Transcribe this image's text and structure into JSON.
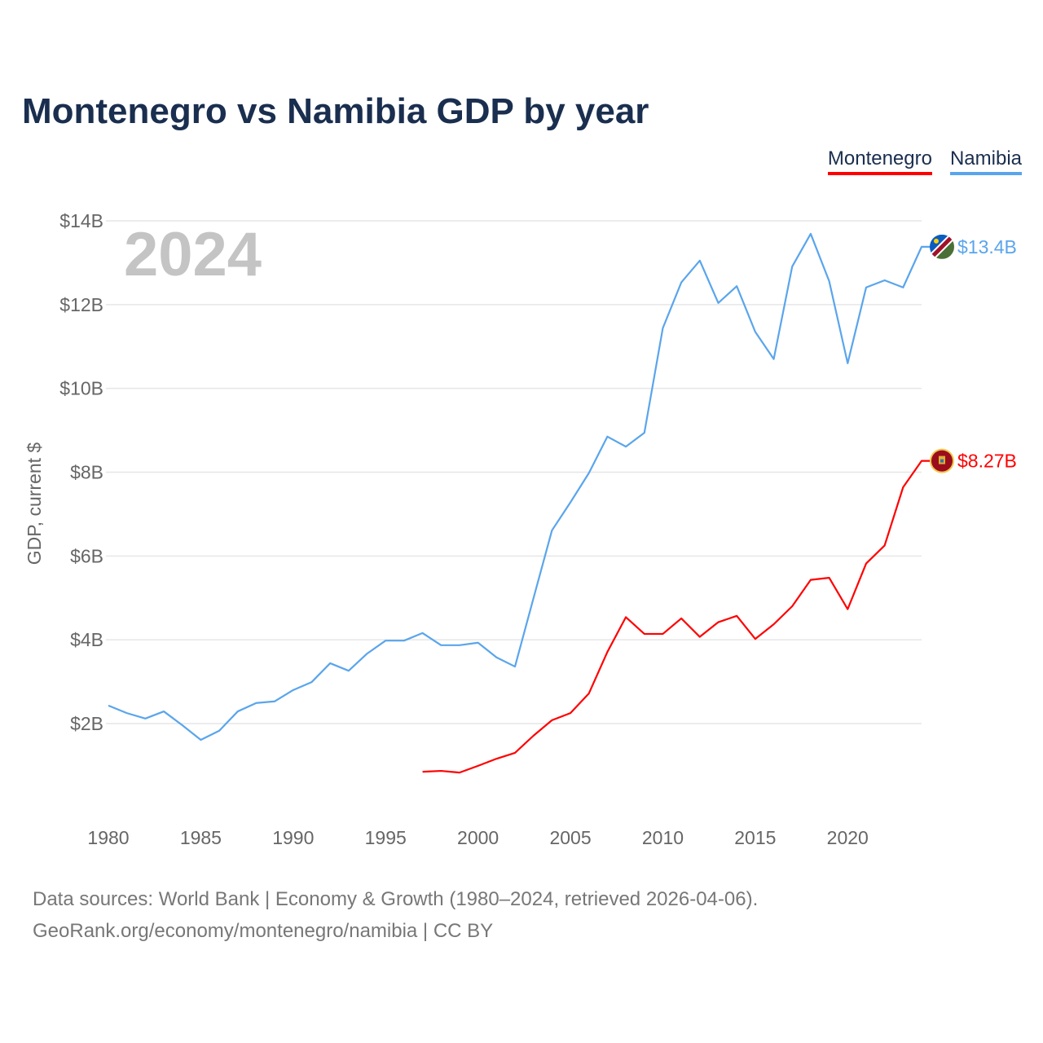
{
  "chart_data": {
    "type": "line",
    "title": "Montenegro vs Namibia GDP by year",
    "ylabel": "GDP, current $",
    "xlabel": "",
    "ylim": [
      0,
      14
    ],
    "xlim": [
      1980,
      2024
    ],
    "yticks": [
      {
        "v": 2,
        "label": "$2B"
      },
      {
        "v": 4,
        "label": "$4B"
      },
      {
        "v": 6,
        "label": "$6B"
      },
      {
        "v": 8,
        "label": "$8B"
      },
      {
        "v": 10,
        "label": "$10B"
      },
      {
        "v": 12,
        "label": "$12B"
      },
      {
        "v": 14,
        "label": "$14B"
      }
    ],
    "xticks": [
      1980,
      1985,
      1990,
      1995,
      2000,
      2005,
      2010,
      2015,
      2020
    ],
    "grid": true,
    "legend_position": "top-right",
    "year_overlay": "2024",
    "series": [
      {
        "name": "Montenegro",
        "color": "#ff0000",
        "end_label": "$8.27B",
        "flag": "montenegro-flag",
        "start_year": 1997,
        "values": [
          0.85,
          0.87,
          0.83,
          0.99,
          1.16,
          1.3,
          1.71,
          2.08,
          2.25,
          2.72,
          3.71,
          4.54,
          4.14,
          4.14,
          4.51,
          4.07,
          4.42,
          4.57,
          4.02,
          4.37,
          4.8,
          5.43,
          5.48,
          4.73,
          5.82,
          6.25,
          7.64,
          8.27
        ]
      },
      {
        "name": "Namibia",
        "color": "#5aa5ec",
        "end_label": "$13.4B",
        "flag": "namibia-flag",
        "start_year": 1980,
        "values": [
          2.43,
          2.25,
          2.12,
          2.29,
          1.96,
          1.61,
          1.83,
          2.29,
          2.49,
          2.53,
          2.8,
          2.99,
          3.44,
          3.26,
          3.67,
          3.98,
          3.98,
          4.16,
          3.87,
          3.87,
          3.93,
          3.58,
          3.36,
          4.99,
          6.61,
          7.28,
          7.98,
          8.85,
          8.61,
          8.94,
          11.44,
          12.53,
          13.05,
          12.04,
          12.44,
          11.35,
          10.7,
          12.91,
          13.69,
          12.56,
          10.6,
          12.41,
          12.58,
          12.41,
          13.38
        ]
      }
    ]
  },
  "footer": {
    "line1": "Data sources: World Bank | Economy & Growth (1980–2024, retrieved 2026-04-06).",
    "line2": "GeoRank.org/economy/montenegro/namibia | CC BY"
  }
}
